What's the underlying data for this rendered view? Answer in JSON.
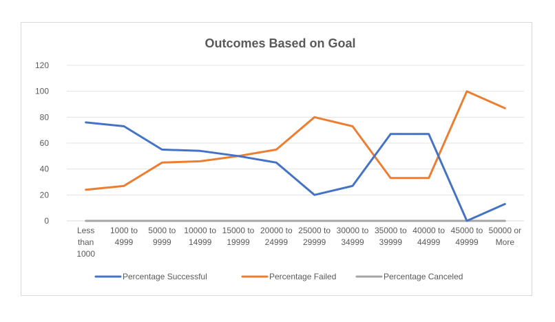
{
  "chart_data": {
    "type": "line",
    "title": "Outcomes Based on Goal",
    "xlabel": "",
    "ylabel": "",
    "ylim": [
      0,
      120
    ],
    "yticks": [
      0,
      20,
      40,
      60,
      80,
      100,
      120
    ],
    "grid": true,
    "legend_position": "bottom",
    "categories": [
      [
        "Less",
        "than",
        "1000"
      ],
      [
        "1000 to",
        "4999"
      ],
      [
        "5000 to",
        "9999"
      ],
      [
        "10000 to",
        "14999"
      ],
      [
        "15000 to",
        "19999"
      ],
      [
        "20000 to",
        "24999"
      ],
      [
        "25000 to",
        "29999"
      ],
      [
        "30000 to",
        "34999"
      ],
      [
        "35000 to",
        "39999"
      ],
      [
        "40000 to",
        "44999"
      ],
      [
        "45000 to",
        "49999"
      ],
      [
        "50000 or",
        "More"
      ]
    ],
    "series": [
      {
        "name": "Percentage Successful",
        "color": "#4472c4",
        "values": [
          76,
          73,
          55,
          54,
          50,
          45,
          20,
          27,
          67,
          67,
          0,
          13
        ]
      },
      {
        "name": "Percentage Failed",
        "color": "#ed7d31",
        "values": [
          24,
          27,
          45,
          46,
          50,
          55,
          80,
          73,
          33,
          33,
          100,
          87
        ]
      },
      {
        "name": "Percentage Canceled",
        "color": "#a5a5a5",
        "values": [
          0,
          0,
          0,
          0,
          0,
          0,
          0,
          0,
          0,
          0,
          0,
          0
        ]
      }
    ]
  }
}
